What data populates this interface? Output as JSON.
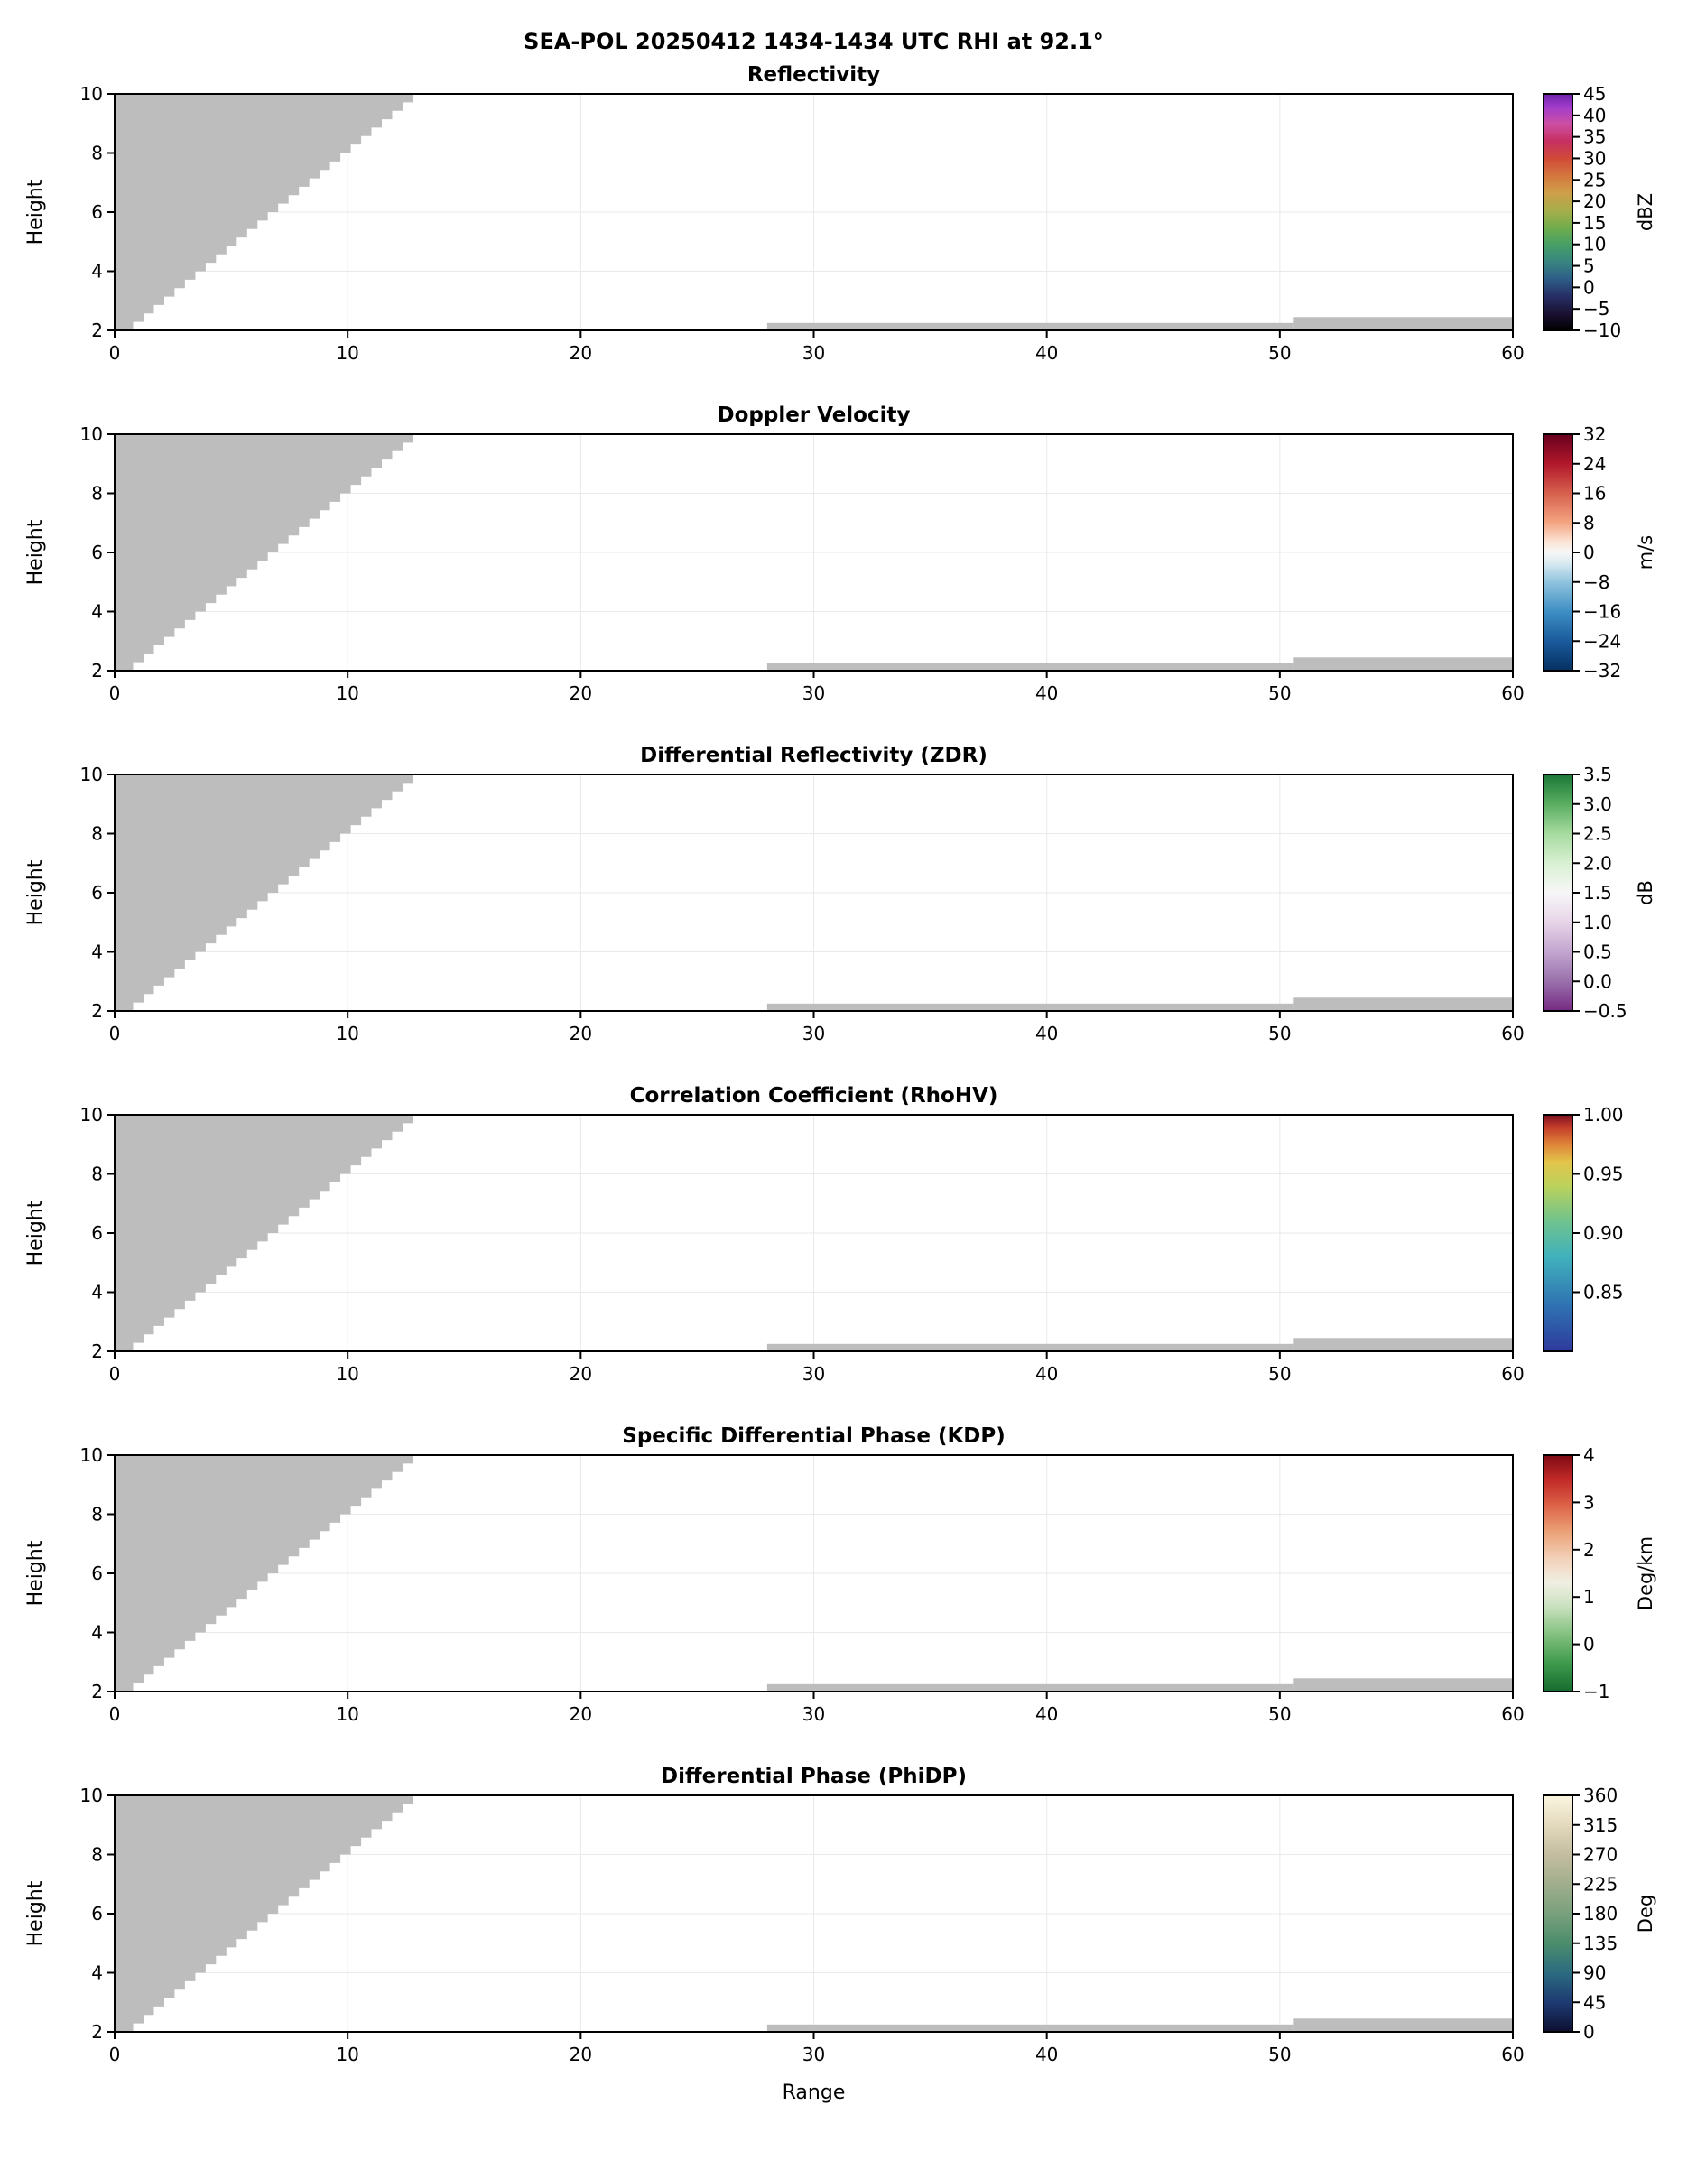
{
  "figure": {
    "suptitle": "SEA-POL 20250412 1434-1434 UTC RHI at 92.1°",
    "x_axis_label": "Range",
    "y_axis_label": "Height",
    "colors": {
      "background": "#ffffff",
      "mask": "#bdbdbd",
      "axis": "#000000",
      "grid": "#e9e9e9"
    }
  },
  "chart_data": {
    "type": "heatmap",
    "x": {
      "label": "Range",
      "range": [
        0,
        60
      ],
      "ticks": {
        "values": [
          0,
          10,
          20,
          30,
          40,
          50,
          60
        ],
        "labels": [
          "0",
          "10",
          "20",
          "30",
          "40",
          "50",
          "60"
        ]
      }
    },
    "y": {
      "label": "Height",
      "range": [
        2,
        10
      ],
      "ticks": {
        "values": [
          2,
          4,
          6,
          8,
          10
        ],
        "labels": [
          "2",
          "4",
          "6",
          "8",
          "10"
        ]
      }
    },
    "mask_regions": {
      "wedge": {
        "x_start": 0.35,
        "x_end": 12.8,
        "y_start": 2.0,
        "steps": 28
      },
      "strips": [
        {
          "x0": 28.0,
          "x1": 50.6,
          "y0": 2.0,
          "y1": 2.25
        },
        {
          "x0": 50.6,
          "x1": 60.0,
          "y0": 2.0,
          "y1": 2.45
        }
      ]
    },
    "panels": [
      {
        "id": "reflectivity",
        "title": "Reflectivity",
        "unit": "dBZ",
        "cbar_range": [
          -10,
          45
        ],
        "cbar_ticks": {
          "values": [
            45,
            40,
            35,
            30,
            25,
            20,
            15,
            10,
            5,
            0,
            -5,
            -10
          ],
          "labels": [
            "45",
            "40",
            "35",
            "30",
            "25",
            "20",
            "15",
            "10",
            "5",
            "0",
            "−5",
            "−10"
          ]
        },
        "gradient": [
          [
            -10,
            "#000000"
          ],
          [
            -6,
            "#1b1233"
          ],
          [
            -2,
            "#262f66"
          ],
          [
            2,
            "#2d5d88"
          ],
          [
            6,
            "#38867f"
          ],
          [
            10,
            "#47a065"
          ],
          [
            14,
            "#72ad4c"
          ],
          [
            18,
            "#a8ae4b"
          ],
          [
            22,
            "#cf9e49"
          ],
          [
            26,
            "#d4763e"
          ],
          [
            30,
            "#d04a38"
          ],
          [
            34,
            "#c62f62"
          ],
          [
            38,
            "#cc4fa2"
          ],
          [
            42,
            "#a13ccb"
          ],
          [
            45,
            "#6b21a8"
          ]
        ]
      },
      {
        "id": "velocity",
        "title": "Doppler Velocity",
        "unit": "m/s",
        "cbar_range": [
          -32,
          32
        ],
        "cbar_ticks": {
          "values": [
            32,
            24,
            16,
            8,
            0,
            -8,
            -16,
            -24,
            -32
          ],
          "labels": [
            "32",
            "24",
            "16",
            "8",
            "0",
            "−8",
            "−16",
            "−24",
            "−32"
          ]
        },
        "gradient": [
          [
            -32,
            "#053061"
          ],
          [
            -24,
            "#1a5a9c"
          ],
          [
            -16,
            "#3e8ec4"
          ],
          [
            -8,
            "#8fc3dd"
          ],
          [
            -3,
            "#d8e9f1"
          ],
          [
            0,
            "#f7f7f7"
          ],
          [
            3,
            "#fbe3d4"
          ],
          [
            8,
            "#f4a582"
          ],
          [
            16,
            "#d6604d"
          ],
          [
            24,
            "#b2182b"
          ],
          [
            32,
            "#67001f"
          ]
        ]
      },
      {
        "id": "zdr",
        "title": "Differential Reflectivity (ZDR)",
        "unit": "dB",
        "cbar_range": [
          -0.5,
          3.5
        ],
        "cbar_ticks": {
          "values": [
            3.5,
            3.0,
            2.5,
            2.0,
            1.5,
            1.0,
            0.5,
            0.0,
            -0.5
          ],
          "labels": [
            "3.5",
            "3.0",
            "2.5",
            "2.0",
            "1.5",
            "1.0",
            "0.5",
            "0.0",
            "−0.5"
          ]
        },
        "gradient": [
          [
            -0.5,
            "#762a83"
          ],
          [
            0,
            "#9970ab"
          ],
          [
            0.5,
            "#c2a5cf"
          ],
          [
            1,
            "#e7d4e8"
          ],
          [
            1.5,
            "#f7f7f7"
          ],
          [
            2,
            "#d9f0d3"
          ],
          [
            2.5,
            "#a6dba0"
          ],
          [
            3,
            "#5aae61"
          ],
          [
            3.5,
            "#1b7837"
          ]
        ]
      },
      {
        "id": "rhohv",
        "title": "Correlation Coefficient (RhoHV)",
        "unit": "",
        "cbar_range": [
          0.8,
          1.0
        ],
        "cbar_ticks": {
          "values": [
            1.0,
            0.95,
            0.9,
            0.85
          ],
          "labels": [
            "1.00",
            "0.95",
            "0.90",
            "0.85"
          ]
        },
        "gradient": [
          [
            0.8,
            "#2e3a9c"
          ],
          [
            0.84,
            "#2f74b3"
          ],
          [
            0.88,
            "#41b1bc"
          ],
          [
            0.91,
            "#6fc38d"
          ],
          [
            0.94,
            "#bcd25c"
          ],
          [
            0.96,
            "#e3c44b"
          ],
          [
            0.975,
            "#df8438"
          ],
          [
            0.99,
            "#c23b2a"
          ],
          [
            1.0,
            "#7a1020"
          ]
        ]
      },
      {
        "id": "kdp",
        "title": "Specific Differential Phase (KDP)",
        "unit": "Deg/km",
        "cbar_range": [
          -1,
          4
        ],
        "cbar_ticks": {
          "values": [
            4,
            3,
            2,
            1,
            0,
            -1
          ],
          "labels": [
            "4",
            "3",
            "2",
            "1",
            "0",
            "−1"
          ]
        },
        "gradient": [
          [
            -1,
            "#156b2e"
          ],
          [
            -0.4,
            "#3f9a4d"
          ],
          [
            0.2,
            "#82c07e"
          ],
          [
            0.8,
            "#c9e1bf"
          ],
          [
            1.3,
            "#f0efe3"
          ],
          [
            1.8,
            "#f3d2ba"
          ],
          [
            2.4,
            "#eb9f74"
          ],
          [
            3,
            "#da5c43"
          ],
          [
            3.5,
            "#c02827"
          ],
          [
            4,
            "#7d0a13"
          ]
        ]
      },
      {
        "id": "phidp",
        "title": "Differential Phase (PhiDP)",
        "unit": "Deg",
        "cbar_range": [
          0,
          360
        ],
        "cbar_ticks": {
          "values": [
            360,
            315,
            270,
            225,
            180,
            135,
            90,
            45,
            0
          ],
          "labels": [
            "360",
            "315",
            "270",
            "225",
            "180",
            "135",
            "90",
            "45",
            "0"
          ]
        },
        "gradient": [
          [
            0,
            "#0d1030"
          ],
          [
            45,
            "#1e3a72"
          ],
          [
            90,
            "#2b6b80"
          ],
          [
            135,
            "#4b8d6c"
          ],
          [
            180,
            "#79a07c"
          ],
          [
            225,
            "#a0ae8d"
          ],
          [
            270,
            "#c4bda0"
          ],
          [
            315,
            "#e3d9bd"
          ],
          [
            360,
            "#fbf6e1"
          ]
        ]
      }
    ]
  }
}
